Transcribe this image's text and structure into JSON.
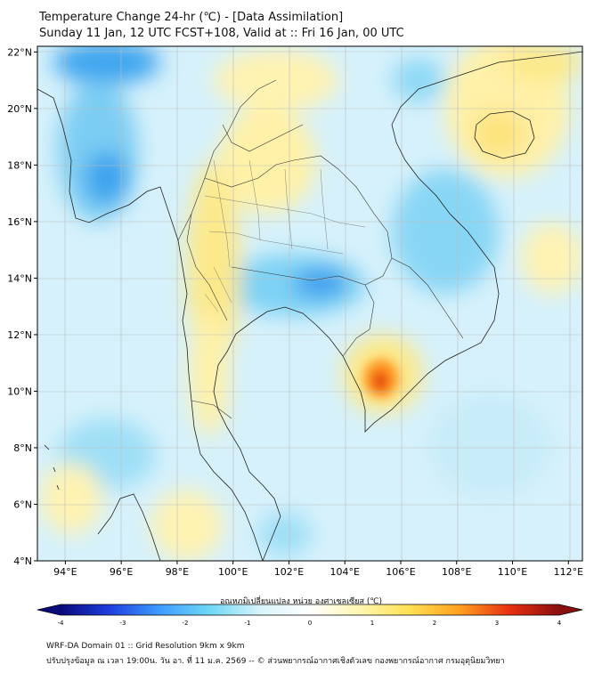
{
  "title": "Temperature Change 24-hr (℃) - [Data Assimilation]",
  "subtitle": "Sunday 11 Jan, 12 UTC FCST+108, Valid at :: Fri 16 Jan, 00 UTC",
  "lat_ticks": [
    "22°N",
    "20°N",
    "18°N",
    "16°N",
    "14°N",
    "12°N",
    "10°N",
    "8°N",
    "6°N",
    "4°N"
  ],
  "lon_ticks": [
    "94°E",
    "96°E",
    "98°E",
    "100°E",
    "102°E",
    "104°E",
    "106°E",
    "108°E",
    "110°E",
    "112°E"
  ],
  "lat_values": [
    22,
    20,
    18,
    16,
    14,
    12,
    10,
    8,
    6,
    4
  ],
  "lon_values": [
    94,
    96,
    98,
    100,
    102,
    104,
    106,
    108,
    110,
    112
  ],
  "map_extent": {
    "lon_min": 93,
    "lon_max": 112.5,
    "lat_min": 4,
    "lat_max": 22.2
  },
  "colorbar": {
    "label": "อุณหภูมิเปลี่ยนแปลง หน่วย องศาเซลเซียส (℃)",
    "ticks": [
      "-4",
      "-3",
      "-2",
      "-1",
      "0",
      "1",
      "2",
      "3",
      "4"
    ],
    "min": -4,
    "max": 4,
    "colors": [
      "#0a0a7a",
      "#1f3fe0",
      "#3f9dff",
      "#6fd8f5",
      "#d8f4fb",
      "#ffffff",
      "#fff7b0",
      "#ffe050",
      "#ffa020",
      "#e83010",
      "#8a0f0f"
    ]
  },
  "footer": {
    "line1": "WRF-DA Domain 01 :: Grid Resolution 9km x 9km",
    "line2": "ปรับปรุงข้อมูล ณ เวลา 19:00น. วัน อา. ที่ 11 ม.ค. 2569 -- © ส่วนพยากรณ์อากาศเชิงตัวเลข กองพยากรณ์อากาศ กรมอุตุนิยมวิทยา"
  }
}
